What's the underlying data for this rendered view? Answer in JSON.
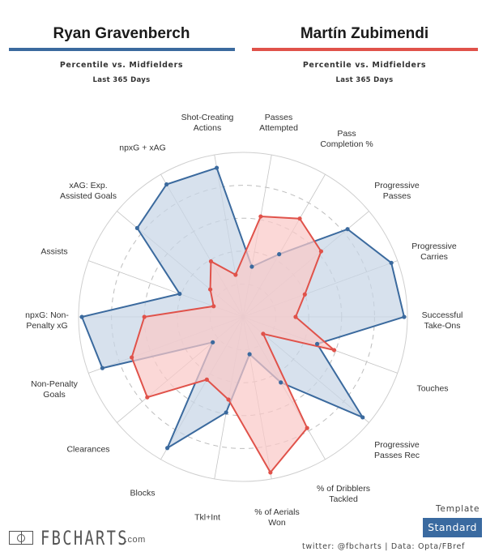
{
  "players": [
    {
      "name": "Ryan Gravenberch",
      "color": "#3b6a9e",
      "fill": "#c8d6e6",
      "subtitle": "Percentile vs. Midfielders",
      "period": "Last 365 Days"
    },
    {
      "name": "Martín Zubimendi",
      "color": "#e0524a",
      "fill": "#f9c9c7",
      "subtitle": "Percentile vs. Midfielders",
      "period": "Last 365 Days"
    }
  ],
  "chart_data": {
    "type": "radar",
    "title": "Ryan Gravenberch vs Martín Zubimendi — Percentile vs. Midfielders, Last 365 Days",
    "range": [
      0,
      100
    ],
    "rings": [
      20,
      40,
      60,
      80,
      100
    ],
    "categories": [
      "Successful Take-Ons",
      "Progressive Carries",
      "Progressive Passes",
      "Pass Completion %",
      "Passes Attempted",
      "Shot-Creating Actions",
      "npxG + xAG",
      "xAG: Exp. Assisted Goals",
      "Assists",
      "npxG: Non-Penalty xG",
      "Non-Penalty Goals",
      "Clearances",
      "Blocks",
      "Tkl+Int",
      "% of Aerials Won",
      "% of Dribblers Tackled",
      "Progressive Passes Rec",
      "Touches"
    ],
    "labels_display": [
      [
        "Successful",
        "Take-Ons"
      ],
      [
        "Progressive",
        "Carries"
      ],
      [
        "Progressive",
        "Passes"
      ],
      [
        "Pass",
        "Completion %"
      ],
      [
        "Passes",
        "Attempted"
      ],
      [
        "Shot-Creating",
        "Actions"
      ],
      [
        "npxG + xAG"
      ],
      [
        "xAG: Exp.",
        "Assisted Goals"
      ],
      [
        "Assists"
      ],
      [
        "npxG: Non-",
        "Penalty xG"
      ],
      [
        "Non-Penalty",
        "Goals"
      ],
      [
        "Clearances"
      ],
      [
        "Blocks"
      ],
      [
        "Tkl+Int"
      ],
      [
        "% of Aerials",
        "Won"
      ],
      [
        "% of Dribblers",
        "Tackled"
      ],
      [
        "Progressive",
        "Passes Rec"
      ],
      [
        "Touches"
      ]
    ],
    "series": [
      {
        "name": "Ryan Gravenberch",
        "values": [
          98,
          96,
          83,
          44,
          31,
          92,
          93,
          84,
          41,
          98,
          91,
          24,
          92,
          59,
          23,
          46,
          95,
          48
        ]
      },
      {
        "name": "Martín Zubimendi",
        "values": [
          32,
          40,
          62,
          69,
          62,
          26,
          39,
          26,
          19,
          60,
          72,
          76,
          44,
          51,
          96,
          78,
          16,
          59
        ]
      }
    ]
  },
  "footer": {
    "logo_text": "FBCHARTS",
    "logo_suffix": ".com",
    "template_label": "Template",
    "template_value": "Standard",
    "credits": "twitter: @fbcharts | Data: Opta/FBref"
  }
}
